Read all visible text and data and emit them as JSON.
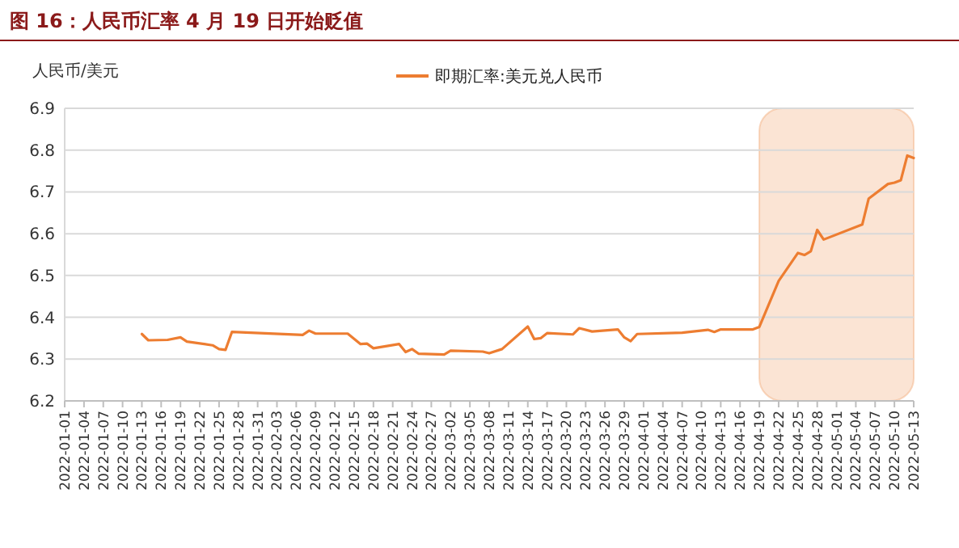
{
  "chart_data": {
    "type": "line",
    "title": "图 16：人民币汇率 4 月 19 日开始贬值",
    "ylabel": "人民币/美元",
    "legend": "top",
    "grid": "y",
    "marker": "none",
    "line_style": "solid",
    "ylim": [
      6.2,
      6.9
    ],
    "yticks": [
      6.2,
      6.3,
      6.4,
      6.5,
      6.6,
      6.7,
      6.8,
      6.9
    ],
    "xlim": [
      "2022-01-01",
      "2022-05-13"
    ],
    "xticks": [
      "2022-01-01",
      "2022-01-04",
      "2022-01-07",
      "2022-01-10",
      "2022-01-13",
      "2022-01-16",
      "2022-01-19",
      "2022-01-22",
      "2022-01-25",
      "2022-01-28",
      "2022-01-31",
      "2022-02-03",
      "2022-02-06",
      "2022-02-09",
      "2022-02-12",
      "2022-02-15",
      "2022-02-18",
      "2022-02-21",
      "2022-02-24",
      "2022-02-27",
      "2022-03-02",
      "2022-03-05",
      "2022-03-08",
      "2022-03-11",
      "2022-03-14",
      "2022-03-17",
      "2022-03-20",
      "2022-03-23",
      "2022-03-26",
      "2022-03-29",
      "2022-04-01",
      "2022-04-04",
      "2022-04-07",
      "2022-04-10",
      "2022-04-13",
      "2022-04-16",
      "2022-04-19",
      "2022-04-22",
      "2022-04-25",
      "2022-04-28",
      "2022-05-01",
      "2022-05-04",
      "2022-05-07",
      "2022-05-10",
      "2022-05-13"
    ],
    "x": [
      "2022-01-13",
      "2022-01-14",
      "2022-01-17",
      "2022-01-19",
      "2022-01-20",
      "2022-01-24",
      "2022-01-25",
      "2022-01-26",
      "2022-01-27",
      "2022-02-07",
      "2022-02-08",
      "2022-02-09",
      "2022-02-14",
      "2022-02-16",
      "2022-02-17",
      "2022-02-18",
      "2022-02-22",
      "2022-02-23",
      "2022-02-24",
      "2022-02-25",
      "2022-03-01",
      "2022-03-02",
      "2022-03-07",
      "2022-03-08",
      "2022-03-10",
      "2022-03-14",
      "2022-03-15",
      "2022-03-16",
      "2022-03-17",
      "2022-03-21",
      "2022-03-22",
      "2022-03-24",
      "2022-03-28",
      "2022-03-29",
      "2022-03-30",
      "2022-03-31",
      "2022-04-07",
      "2022-04-11",
      "2022-04-12",
      "2022-04-13",
      "2022-04-18",
      "2022-04-19",
      "2022-04-22",
      "2022-04-25",
      "2022-04-26",
      "2022-04-27",
      "2022-04-28",
      "2022-04-29",
      "2022-05-05",
      "2022-05-06",
      "2022-05-09",
      "2022-05-10",
      "2022-05-11",
      "2022-05-12",
      "2022-05-13"
    ],
    "series": [
      {
        "name": "即期汇率:美元兑人民币",
        "color": "#ed7d31",
        "values": [
          6.36,
          6.345,
          6.346,
          6.352,
          6.342,
          6.333,
          6.324,
          6.322,
          6.365,
          6.358,
          6.368,
          6.361,
          6.361,
          6.336,
          6.337,
          6.326,
          6.336,
          6.317,
          6.324,
          6.313,
          6.311,
          6.32,
          6.318,
          6.314,
          6.324,
          6.378,
          6.348,
          6.35,
          6.362,
          6.359,
          6.374,
          6.366,
          6.371,
          6.352,
          6.343,
          6.36,
          6.363,
          6.37,
          6.365,
          6.371,
          6.371,
          6.377,
          6.487,
          6.554,
          6.549,
          6.558,
          6.609,
          6.586,
          6.622,
          6.684,
          6.719,
          6.722,
          6.728,
          6.787,
          6.781
        ]
      }
    ],
    "bands": [
      {
        "axis": "x",
        "from": "2022-04-19",
        "to": "2022-05-13",
        "color": "#f4b183"
      }
    ]
  }
}
